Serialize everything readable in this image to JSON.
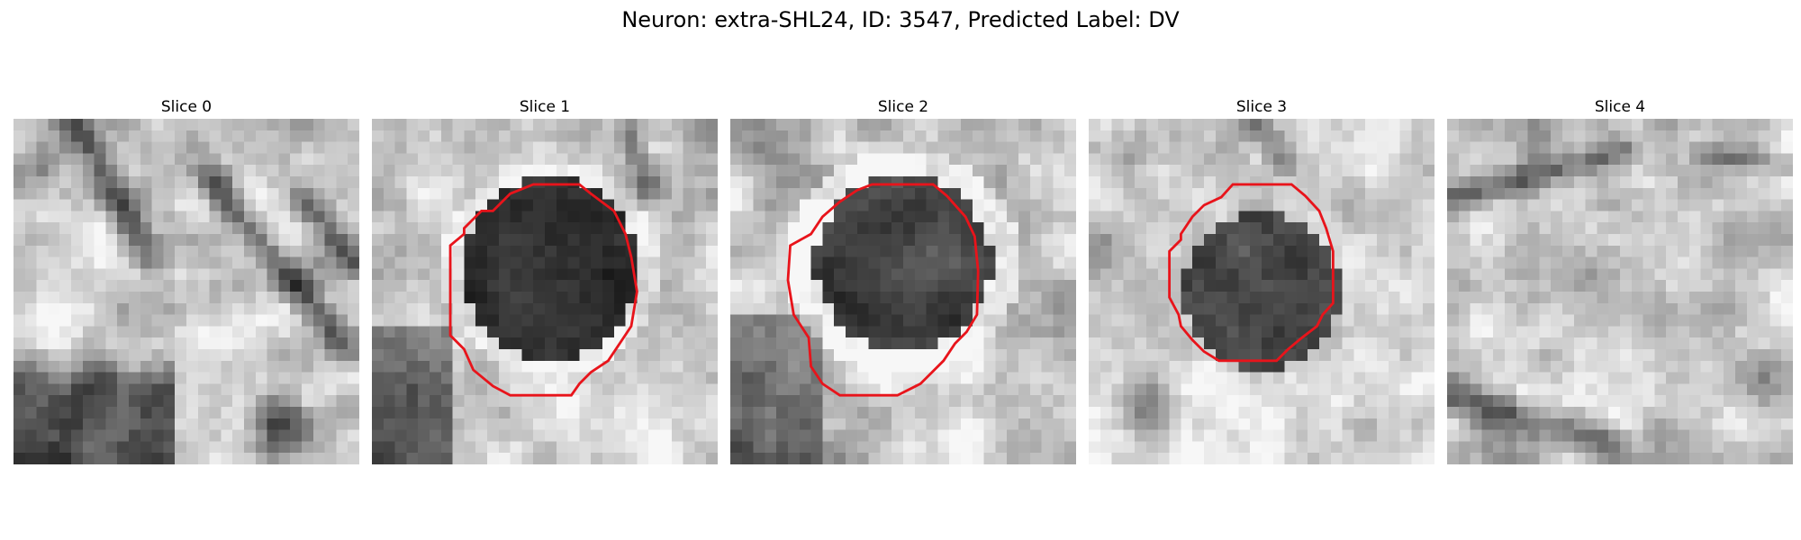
{
  "figure": {
    "title": "Neuron: extra-SHL24, ID: 3547, Predicted Label: DV"
  },
  "panels": [
    {
      "title": "Slice 0",
      "has_contour": false,
      "seed": 11,
      "variant": "slice0"
    },
    {
      "title": "Slice 1",
      "has_contour": true,
      "seed": 23,
      "variant": "slice1"
    },
    {
      "title": "Slice 2",
      "has_contour": true,
      "seed": 37,
      "variant": "slice2"
    },
    {
      "title": "Slice 3",
      "has_contour": true,
      "seed": 51,
      "variant": "slice3"
    },
    {
      "title": "Slice 4",
      "has_contour": false,
      "seed": 67,
      "variant": "slice4"
    }
  ],
  "colors": {
    "contour": "#e8141b"
  }
}
